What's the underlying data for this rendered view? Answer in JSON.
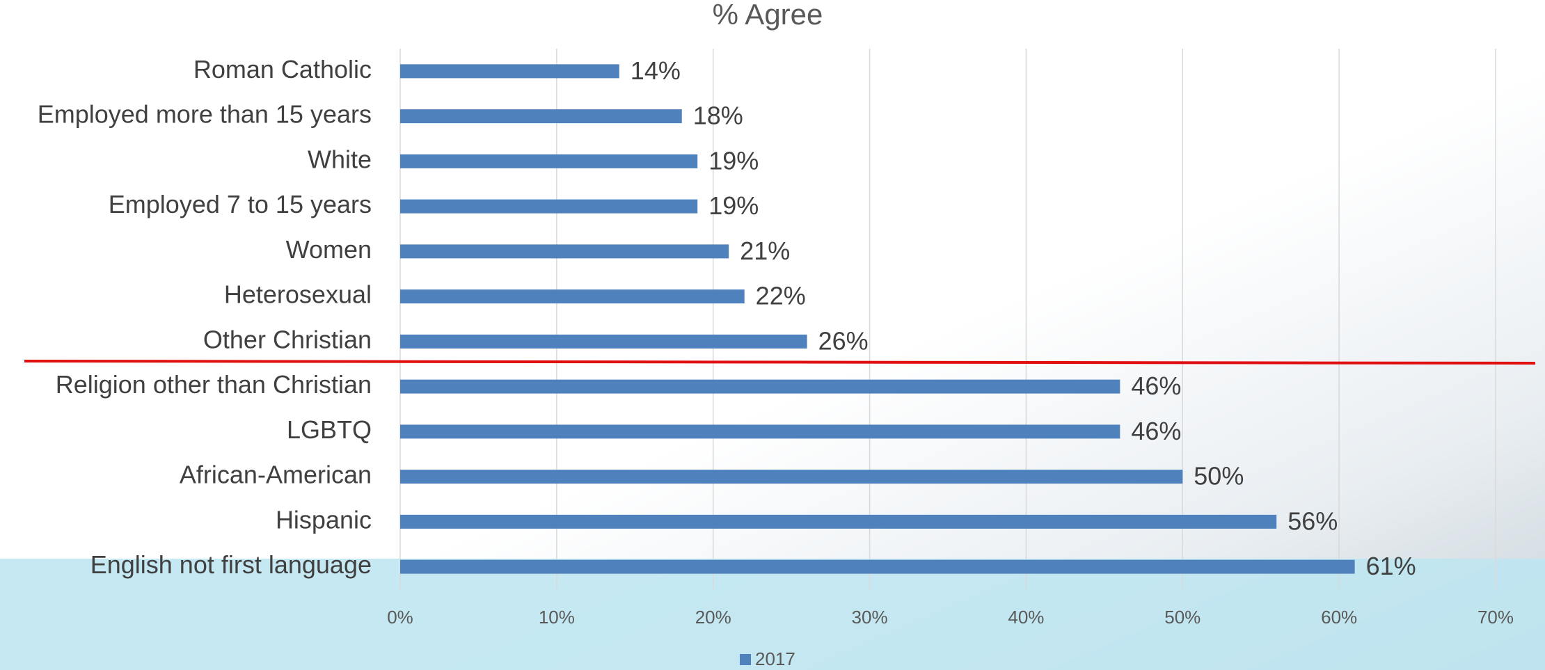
{
  "chart_data": {
    "type": "bar",
    "orientation": "horizontal",
    "title": "% Agree",
    "categories": [
      "Roman Catholic",
      "Employed more than 15 years",
      "White",
      "Employed 7 to 15 years",
      "Women",
      "Heterosexual",
      "Other Christian",
      "Religion other than Christian",
      "LGBTQ",
      "African-American",
      "Hispanic",
      "English not first language"
    ],
    "series": [
      {
        "name": "2017",
        "color": "#4f81bd",
        "values": [
          14,
          18,
          19,
          19,
          21,
          22,
          26,
          46,
          46,
          50,
          56,
          61
        ],
        "value_labels": [
          "14%",
          "18%",
          "19%",
          "19%",
          "21%",
          "22%",
          "26%",
          "46%",
          "46%",
          "50%",
          "56%",
          "61%"
        ]
      }
    ],
    "xlim": [
      0,
      70
    ],
    "xticks": [
      {
        "value": 0,
        "label": "0%"
      },
      {
        "value": 10,
        "label": "10%"
      },
      {
        "value": 20,
        "label": "20%"
      },
      {
        "value": 30,
        "label": "30%"
      },
      {
        "value": 40,
        "label": "40%"
      },
      {
        "value": 50,
        "label": "50%"
      },
      {
        "value": 60,
        "label": "60%"
      },
      {
        "value": 70,
        "label": "70%"
      }
    ],
    "grid": true,
    "legend": "bottom"
  }
}
